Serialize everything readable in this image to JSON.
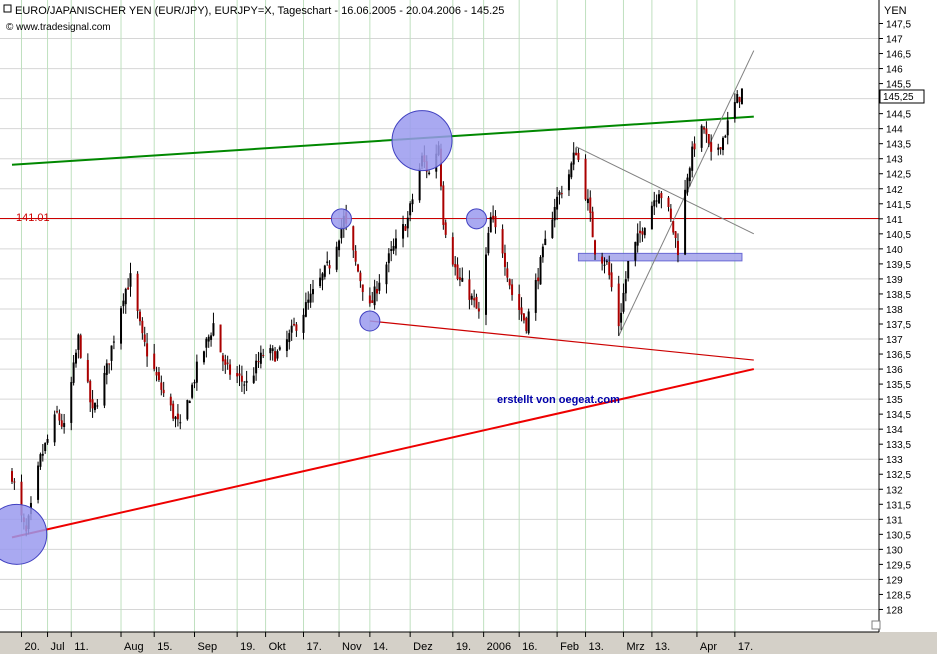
{
  "header": {
    "title": "EURO/JAPANISCHER YEN (EUR/JPY), EURJPY=X, Tageschart - 16.06.2005 - 20.04.2006 - 145.25",
    "source": "© www.tradesignal.com"
  },
  "annotation": {
    "text": "erstellt von oegeat.com"
  },
  "chart_data": {
    "type": "candlestick",
    "title": "EURO/JAPANISCHER YEN (EUR/JPY), EURJPY=X, Tageschart - 16.06.2005 - 20.04.2006 - 145.25",
    "y_unit": "YEN",
    "ylim": [
      127.25,
      148.5
    ],
    "y_ticks": [
      128,
      128.5,
      129,
      129.5,
      130,
      130.5,
      131,
      131.5,
      132,
      132.5,
      133,
      133.5,
      134,
      134.5,
      135,
      135.5,
      136,
      136.5,
      137,
      137.5,
      138,
      138.5,
      139,
      139.5,
      140,
      140.5,
      141,
      141.5,
      142,
      142.5,
      143,
      143.5,
      144,
      144.5,
      145,
      145.5,
      146,
      146.5,
      147,
      147.5
    ],
    "x_range": [
      "2005-06-16",
      "2006-04-20"
    ],
    "x_ticks": [
      {
        "date": "2005-06-20",
        "label": "20."
      },
      {
        "date": "2005-07-01",
        "label": "Jul"
      },
      {
        "date": "2005-07-11",
        "label": "11."
      },
      {
        "date": "2005-08-01",
        "label": "Aug"
      },
      {
        "date": "2005-08-15",
        "label": "15."
      },
      {
        "date": "2005-09-01",
        "label": "Sep"
      },
      {
        "date": "2005-09-19",
        "label": "19."
      },
      {
        "date": "2005-10-01",
        "label": "Okt"
      },
      {
        "date": "2005-10-17",
        "label": "17."
      },
      {
        "date": "2005-11-01",
        "label": "Nov"
      },
      {
        "date": "2005-11-14",
        "label": "14."
      },
      {
        "date": "2005-12-01",
        "label": "Dez"
      },
      {
        "date": "2005-12-19",
        "label": "19."
      },
      {
        "date": "2006-01-01",
        "label": "2006"
      },
      {
        "date": "2006-01-16",
        "label": "16."
      },
      {
        "date": "2006-02-01",
        "label": "Feb"
      },
      {
        "date": "2006-02-13",
        "label": "13."
      },
      {
        "date": "2006-03-01",
        "label": "Mrz"
      },
      {
        "date": "2006-03-13",
        "label": "13."
      },
      {
        "date": "2006-04-01",
        "label": "Apr"
      },
      {
        "date": "2006-04-17",
        "label": "17."
      }
    ],
    "last_value": 145.25,
    "last_value_label": "145,25",
    "horizontal_line": {
      "value": 141.01,
      "label": "141.01",
      "color": "#cc0000"
    },
    "trendlines": [
      {
        "name": "green-resistance",
        "color": "#008800",
        "from": {
          "date": "2005-06-16",
          "value": 142.8
        },
        "to": {
          "date": "2006-04-25",
          "value": 144.4
        }
      },
      {
        "name": "red-support",
        "color": "#ee0000",
        "from": {
          "date": "2005-06-16",
          "value": 130.4
        },
        "to": {
          "date": "2006-04-25",
          "value": 136.0
        }
      },
      {
        "name": "thin-red-support",
        "color": "#cc0000",
        "from": {
          "date": "2005-11-14",
          "value": 137.6
        },
        "to": {
          "date": "2006-04-25",
          "value": 136.3
        }
      },
      {
        "name": "grey-down-line",
        "color": "#808080",
        "from": {
          "date": "2006-02-09",
          "value": 143.4
        },
        "to": {
          "date": "2006-04-25",
          "value": 140.5
        }
      },
      {
        "name": "grey-up-line",
        "color": "#808080",
        "from": {
          "date": "2006-02-27",
          "value": 137.1
        },
        "to": {
          "date": "2006-04-25",
          "value": 146.6
        }
      }
    ],
    "markers": [
      {
        "date": "2005-06-18",
        "value": 130.5,
        "size": "large",
        "color": "#9a9aee"
      },
      {
        "date": "2005-12-06",
        "value": 143.6,
        "size": "large",
        "color": "#9a9aee"
      },
      {
        "date": "2005-11-02",
        "value": 141.0,
        "size": "small",
        "color": "#9a9aee"
      },
      {
        "date": "2005-11-14",
        "value": 137.6,
        "size": "small",
        "color": "#9a9aee"
      },
      {
        "date": "2005-12-29",
        "value": 141.0,
        "size": "small",
        "color": "#9a9aee"
      }
    ],
    "support_zone": {
      "from_date": "2006-02-10",
      "to_date": "2006-04-20",
      "low": 139.6,
      "high": 139.85,
      "color": "#a8a8ec"
    },
    "series": [
      {
        "name": "EUR/JPY",
        "anchors": [
          [
            "2005-06-16",
            132.5
          ],
          [
            "2005-06-20",
            131.0
          ],
          [
            "2005-06-22",
            130.5
          ],
          [
            "2005-06-28",
            133.0
          ],
          [
            "2005-07-05",
            134.5
          ],
          [
            "2005-07-08",
            134.0
          ],
          [
            "2005-07-14",
            137.0
          ],
          [
            "2005-07-20",
            134.5
          ],
          [
            "2005-07-26",
            136.0
          ],
          [
            "2005-08-02",
            138.5
          ],
          [
            "2005-08-05",
            139.0
          ],
          [
            "2005-08-10",
            137.0
          ],
          [
            "2005-08-17",
            135.5
          ],
          [
            "2005-08-26",
            134.0
          ],
          [
            "2005-09-02",
            136.0
          ],
          [
            "2005-09-09",
            137.5
          ],
          [
            "2005-09-14",
            136.0
          ],
          [
            "2005-09-23",
            135.5
          ],
          [
            "2005-09-30",
            136.5
          ],
          [
            "2005-10-07",
            136.5
          ],
          [
            "2005-10-14",
            137.5
          ],
          [
            "2005-10-21",
            138.5
          ],
          [
            "2005-10-28",
            139.5
          ],
          [
            "2005-11-03",
            141.0
          ],
          [
            "2005-11-08",
            139.5
          ],
          [
            "2005-11-14",
            138.0
          ],
          [
            "2005-11-18",
            139.0
          ],
          [
            "2005-11-24",
            140.0
          ],
          [
            "2005-11-30",
            141.0
          ],
          [
            "2005-12-06",
            143.0
          ],
          [
            "2005-12-09",
            142.5
          ],
          [
            "2005-12-13",
            143.5
          ],
          [
            "2005-12-15",
            141.0
          ],
          [
            "2005-12-21",
            139.0
          ],
          [
            "2005-12-26",
            138.5
          ],
          [
            "2005-12-30",
            137.8
          ],
          [
            "2006-01-04",
            141.0
          ],
          [
            "2006-01-09",
            140.0
          ],
          [
            "2006-01-13",
            138.5
          ],
          [
            "2006-01-19",
            137.5
          ],
          [
            "2006-01-25",
            139.5
          ],
          [
            "2006-01-31",
            141.5
          ],
          [
            "2006-02-06",
            142.5
          ],
          [
            "2006-02-09",
            143.3
          ],
          [
            "2006-02-14",
            141.5
          ],
          [
            "2006-02-17",
            140.0
          ],
          [
            "2006-02-22",
            139.5
          ],
          [
            "2006-02-27",
            137.5
          ],
          [
            "2006-03-03",
            139.5
          ],
          [
            "2006-03-08",
            140.5
          ],
          [
            "2006-03-13",
            141.5
          ],
          [
            "2006-03-16",
            142.0
          ],
          [
            "2006-03-20",
            141.2
          ],
          [
            "2006-03-24",
            140.0
          ],
          [
            "2006-03-28",
            142.5
          ],
          [
            "2006-03-31",
            143.5
          ],
          [
            "2006-04-04",
            144.0
          ],
          [
            "2006-04-07",
            143.0
          ],
          [
            "2006-04-12",
            143.7
          ],
          [
            "2006-04-17",
            144.8
          ],
          [
            "2006-04-20",
            145.25
          ]
        ]
      }
    ]
  }
}
